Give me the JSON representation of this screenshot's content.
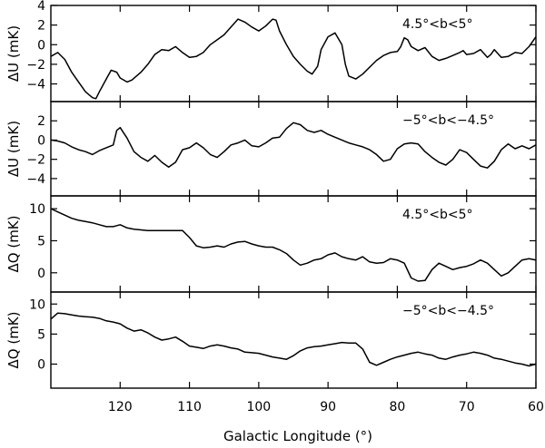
{
  "chart_data": {
    "type": "line",
    "xlabel": "Galactic Longitude (°)",
    "x_ticks": [
      120,
      110,
      100,
      90,
      80,
      70,
      60
    ],
    "xlim": [
      130,
      60
    ],
    "panels": [
      {
        "ylabel": "ΔU (mK)",
        "annotation": "4.5°<b<5°",
        "ylim": [
          -5.8,
          4
        ],
        "y_ticks": [
          -4,
          -2,
          0,
          2,
          4
        ],
        "x": [
          130,
          129,
          128,
          127,
          126,
          125,
          124,
          123.5,
          123,
          122,
          121.3,
          120.5,
          120,
          119,
          118.3,
          117,
          116,
          115,
          114,
          113,
          112,
          111,
          110,
          109,
          108,
          107,
          106,
          105,
          104,
          103,
          102,
          101,
          100,
          99,
          98,
          97.5,
          97,
          96,
          95,
          94,
          93,
          92.3,
          91.5,
          91,
          90,
          89,
          88,
          87.5,
          87,
          86,
          85,
          84,
          83,
          82,
          81,
          80,
          79.5,
          79,
          78.5,
          78,
          77,
          76,
          75,
          74,
          73,
          72,
          71,
          70.5,
          70,
          69,
          68,
          67,
          66.5,
          66,
          65,
          64,
          63,
          62,
          61,
          60
        ],
        "values": [
          -1.2,
          -0.8,
          -1.5,
          -2.8,
          -3.8,
          -4.8,
          -5.4,
          -5.5,
          -4.8,
          -3.5,
          -2.6,
          -2.8,
          -3.4,
          -3.8,
          -3.6,
          -2.8,
          -2.0,
          -1.0,
          -0.5,
          -0.6,
          -0.2,
          -0.8,
          -1.3,
          -1.2,
          -0.8,
          0.0,
          0.5,
          1.0,
          1.8,
          2.6,
          2.3,
          1.8,
          1.4,
          1.9,
          2.6,
          2.5,
          1.4,
          0.0,
          -1.2,
          -2.0,
          -2.7,
          -3.0,
          -2.2,
          -0.5,
          0.8,
          1.2,
          0.0,
          -2.0,
          -3.2,
          -3.5,
          -3.0,
          -2.3,
          -1.6,
          -1.1,
          -0.8,
          -0.7,
          -0.2,
          0.7,
          0.5,
          -0.2,
          -0.6,
          -0.3,
          -1.2,
          -1.6,
          -1.4,
          -1.1,
          -0.8,
          -0.6,
          -1.0,
          -0.9,
          -0.5,
          -1.3,
          -1.0,
          -0.5,
          -1.3,
          -1.2,
          -0.8,
          -0.9,
          -0.2,
          0.8
        ]
      },
      {
        "ylabel": "ΔU (mK)",
        "annotation": "−5°<b<−4.5°",
        "ylim": [
          -5.8,
          4
        ],
        "y_ticks": [
          -4,
          -2,
          0,
          2
        ],
        "x": [
          130,
          129,
          128,
          127,
          126,
          125,
          124,
          123,
          122,
          121,
          120.5,
          120,
          119,
          118,
          117,
          116,
          115,
          114,
          113,
          112,
          111,
          110,
          109,
          108,
          107,
          106,
          105,
          104,
          103,
          102,
          101,
          100,
          99,
          98,
          97,
          96,
          95,
          94,
          93,
          92,
          91,
          90,
          89,
          88,
          87,
          86,
          85,
          84,
          83,
          82,
          81,
          80,
          79,
          78,
          77,
          76,
          75,
          74,
          73,
          72,
          71,
          70,
          69,
          68,
          67,
          66,
          65,
          64,
          63,
          62,
          61,
          60
        ],
        "values": [
          0.0,
          -0.1,
          -0.3,
          -0.7,
          -1.0,
          -1.2,
          -1.5,
          -1.1,
          -0.8,
          -0.5,
          1.0,
          1.3,
          0.2,
          -1.2,
          -1.8,
          -2.2,
          -1.6,
          -2.3,
          -2.8,
          -2.3,
          -1.0,
          -0.8,
          -0.3,
          -0.8,
          -1.5,
          -1.8,
          -1.2,
          -0.5,
          -0.3,
          0.0,
          -0.6,
          -0.7,
          -0.3,
          0.2,
          0.3,
          1.2,
          1.8,
          1.6,
          1.0,
          0.8,
          1.0,
          0.6,
          0.3,
          0.0,
          -0.3,
          -0.5,
          -0.7,
          -1.0,
          -1.5,
          -2.2,
          -2.0,
          -0.9,
          -0.4,
          -0.3,
          -0.4,
          -1.2,
          -1.8,
          -2.3,
          -2.6,
          -2.0,
          -1.0,
          -1.3,
          -2.0,
          -2.7,
          -2.9,
          -2.2,
          -1.0,
          -0.4,
          -0.9,
          -0.6,
          -0.9,
          -0.5
        ]
      },
      {
        "ylabel": "ΔQ (mK)",
        "annotation": "4.5°<b<5°",
        "ylim": [
          -3,
          12
        ],
        "y_ticks": [
          0,
          5,
          10
        ],
        "x": [
          130,
          129,
          128,
          127,
          126,
          125,
          124,
          123,
          122,
          121,
          120,
          119,
          118,
          117,
          116,
          115,
          114,
          113,
          112,
          111,
          110,
          109,
          108,
          107,
          106,
          105,
          104,
          103,
          102,
          101,
          100,
          99,
          98,
          97,
          96,
          95,
          94,
          93,
          92,
          91,
          90,
          89,
          88,
          87,
          86,
          85,
          84,
          83,
          82,
          81,
          80,
          79,
          78,
          77,
          76,
          75,
          74,
          73,
          72,
          71,
          70,
          69,
          68,
          67,
          66,
          65,
          64,
          63,
          62,
          61,
          60
        ],
        "values": [
          10.0,
          9.5,
          9.0,
          8.5,
          8.2,
          8.0,
          7.8,
          7.5,
          7.2,
          7.2,
          7.5,
          7.0,
          6.8,
          6.7,
          6.6,
          6.6,
          6.6,
          6.6,
          6.6,
          6.6,
          5.5,
          4.2,
          3.9,
          4.0,
          4.2,
          4.0,
          4.5,
          4.8,
          4.9,
          4.5,
          4.2,
          4.0,
          4.0,
          3.6,
          3.0,
          2.0,
          1.2,
          1.5,
          2.0,
          2.2,
          2.8,
          3.1,
          2.5,
          2.2,
          2.0,
          2.5,
          1.7,
          1.5,
          1.6,
          2.2,
          2.0,
          1.5,
          -0.8,
          -1.3,
          -1.2,
          0.5,
          1.5,
          1.0,
          0.5,
          0.8,
          1.0,
          1.4,
          2.0,
          1.5,
          0.5,
          -0.5,
          0.0,
          1.0,
          2.0,
          2.2,
          2.0
        ]
      },
      {
        "ylabel": "ΔQ (mK)",
        "annotation": "−5°<b<−4.5°",
        "ylim": [
          -4,
          12
        ],
        "y_ticks": [
          0,
          5,
          10
        ],
        "x": [
          130,
          129,
          128,
          127,
          126,
          125,
          124,
          123,
          122,
          121,
          120,
          119,
          118,
          117,
          116,
          115,
          114,
          113,
          112,
          111,
          110,
          109,
          108,
          107,
          106,
          105,
          104,
          103,
          102,
          101,
          100,
          99,
          98,
          97,
          96,
          95,
          94,
          93,
          92,
          91,
          90,
          89,
          88,
          87,
          86,
          85,
          84,
          83,
          82,
          81,
          80,
          79,
          78,
          77,
          76,
          75,
          74,
          73,
          72,
          71,
          70,
          69,
          68,
          67,
          66,
          65,
          64,
          63,
          62,
          61,
          60
        ],
        "values": [
          7.5,
          8.5,
          8.4,
          8.2,
          8.0,
          7.9,
          7.8,
          7.6,
          7.2,
          7.0,
          6.7,
          6.0,
          5.5,
          5.7,
          5.2,
          4.5,
          4.0,
          4.2,
          4.5,
          3.8,
          3.0,
          2.8,
          2.6,
          3.0,
          3.2,
          3.0,
          2.7,
          2.5,
          2.0,
          1.9,
          1.8,
          1.5,
          1.2,
          1.0,
          0.8,
          1.4,
          2.2,
          2.7,
          2.9,
          3.0,
          3.2,
          3.4,
          3.6,
          3.5,
          3.5,
          2.5,
          0.3,
          -0.2,
          0.3,
          0.8,
          1.2,
          1.5,
          1.8,
          2.0,
          1.7,
          1.5,
          1.0,
          0.8,
          1.2,
          1.5,
          1.7,
          2.0,
          1.8,
          1.5,
          1.0,
          0.8,
          0.5,
          0.2,
          0.0,
          -0.3,
          0.0
        ]
      }
    ]
  }
}
